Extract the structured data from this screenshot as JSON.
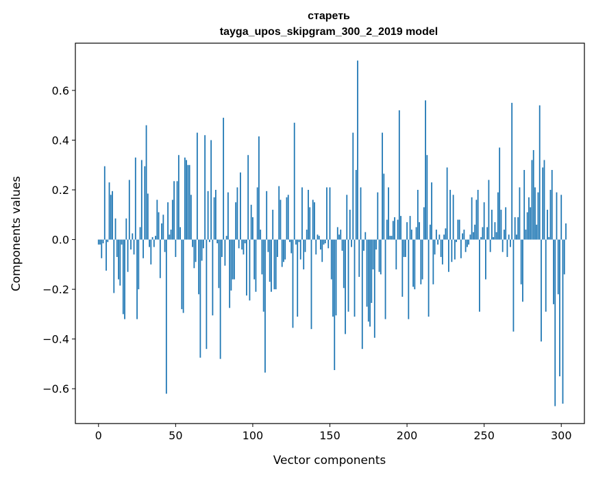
{
  "chart_data": {
    "type": "bar",
    "title_line1": "стареть",
    "title_line2": "tayga_upos_skipgram_300_2_2019 model",
    "xlabel": "Vector components",
    "ylabel": "Components values",
    "xlim": [
      -15,
      315
    ],
    "ylim": [
      -0.74,
      0.79
    ],
    "xticks": [
      0,
      50,
      100,
      150,
      200,
      250,
      300
    ],
    "xtick_labels": [
      "0",
      "50",
      "100",
      "150",
      "200",
      "250",
      "300"
    ],
    "yticks": [
      -0.6,
      -0.4,
      -0.2,
      0.0,
      0.2,
      0.4,
      0.6
    ],
    "ytick_labels": [
      "−0.6",
      "−0.4",
      "−0.2",
      "0.0",
      "0.2",
      "0.4",
      "0.6"
    ],
    "bar_color": "#1f77b4",
    "values": [
      -0.02,
      -0.02,
      -0.075,
      -0.015,
      0.295,
      -0.125,
      -0.01,
      0.23,
      0.18,
      0.195,
      -0.215,
      0.085,
      -0.07,
      -0.16,
      -0.185,
      -0.02,
      -0.3,
      -0.32,
      0.085,
      -0.13,
      0.24,
      -0.04,
      0.025,
      -0.06,
      0.33,
      -0.32,
      -0.2,
      0.05,
      0.32,
      -0.075,
      0.295,
      0.46,
      0.185,
      -0.03,
      -0.1,
      0.01,
      -0.03,
      0.015,
      0.16,
      0.11,
      -0.155,
      0.065,
      0.1,
      -0.05,
      -0.62,
      0.15,
      0.02,
      0.04,
      0.16,
      0.235,
      -0.07,
      0.235,
      0.34,
      0.05,
      -0.28,
      -0.295,
      0.33,
      0.32,
      0.3,
      0.3,
      0.18,
      -0.03,
      -0.115,
      -0.09,
      0.43,
      -0.22,
      -0.475,
      -0.085,
      -0.035,
      0.42,
      -0.44,
      0.195,
      -0.01,
      0.4,
      -0.305,
      0.17,
      0.2,
      -0.015,
      -0.195,
      -0.48,
      -0.07,
      0.49,
      -0.105,
      0.015,
      0.19,
      -0.275,
      -0.205,
      -0.16,
      -0.16,
      0.15,
      0.21,
      -0.035,
      0.27,
      -0.04,
      -0.06,
      -0.015,
      -0.225,
      0.34,
      -0.245,
      0.14,
      0.09,
      -0.16,
      -0.21,
      0.21,
      0.415,
      0.04,
      -0.14,
      -0.29,
      -0.535,
      0.195,
      -0.05,
      -0.17,
      -0.21,
      0.12,
      -0.2,
      -0.2,
      -0.07,
      0.215,
      0.16,
      -0.11,
      -0.09,
      -0.08,
      0.17,
      0.18,
      -0.01,
      -0.055,
      -0.355,
      0.47,
      -0.02,
      -0.31,
      -0.01,
      -0.08,
      0.21,
      -0.12,
      -0.05,
      0.04,
      0.2,
      0.13,
      -0.36,
      0.16,
      0.15,
      -0.06,
      0.02,
      0.015,
      -0.04,
      -0.09,
      -0.02,
      -0.015,
      0.21,
      -0.035,
      0.21,
      -0.16,
      -0.31,
      -0.525,
      -0.305,
      0.05,
      0.02,
      0.04,
      -0.045,
      -0.195,
      -0.38,
      0.18,
      -0.29,
      0.12,
      -0.03,
      0.43,
      -0.31,
      0.28,
      0.72,
      -0.15,
      0.21,
      -0.44,
      -0.045,
      0.03,
      -0.27,
      -0.33,
      -0.35,
      -0.255,
      -0.12,
      -0.395,
      -0.04,
      0.19,
      -0.13,
      -0.14,
      0.43,
      0.265,
      -0.32,
      0.08,
      0.21,
      0.015,
      0.015,
      0.075,
      0.09,
      -0.12,
      0.08,
      0.52,
      0.095,
      -0.23,
      -0.07,
      -0.07,
      0.07,
      -0.32,
      0.095,
      0.04,
      -0.19,
      -0.2,
      0.05,
      0.2,
      0.07,
      -0.18,
      -0.16,
      0.13,
      0.56,
      0.34,
      -0.31,
      0.06,
      0.23,
      -0.18,
      -0.06,
      0.04,
      -0.02,
      0.02,
      -0.07,
      -0.1,
      0.02,
      0.045,
      0.29,
      -0.13,
      0.2,
      -0.09,
      0.18,
      -0.08,
      -0.01,
      0.08,
      0.08,
      -0.075,
      0.025,
      0.04,
      -0.05,
      -0.03,
      -0.02,
      0.02,
      0.17,
      0.03,
      0.06,
      0.16,
      0.2,
      -0.29,
      0.01,
      0.05,
      0.15,
      -0.16,
      0.05,
      0.24,
      -0.05,
      0.12,
      0.01,
      0.07,
      0.03,
      0.19,
      0.37,
      0.12,
      -0.05,
      0.04,
      0.13,
      -0.07,
      0.02,
      -0.03,
      0.55,
      -0.37,
      0.09,
      0.02,
      0.09,
      0.21,
      -0.18,
      -0.25,
      0.28,
      0.04,
      0.11,
      0.17,
      0.13,
      0.32,
      0.36,
      0.21,
      0.06,
      0.19,
      0.54,
      -0.41,
      0.29,
      0.32,
      -0.29,
      0.12,
      0.01,
      0.2,
      0.28,
      -0.26,
      -0.67,
      0.19,
      -0.22,
      -0.55,
      0.18,
      -0.66,
      -0.14,
      0.065
    ]
  }
}
